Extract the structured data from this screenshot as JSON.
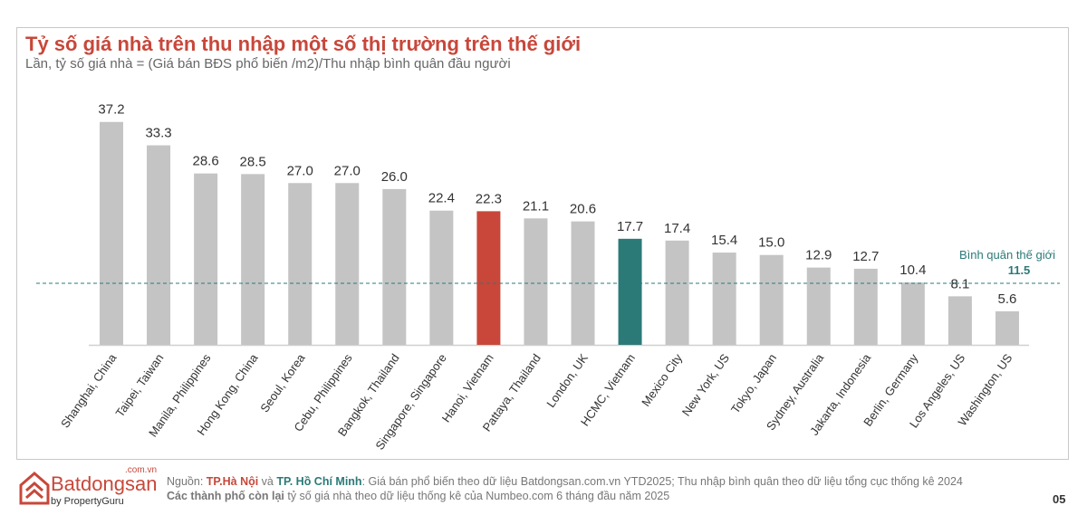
{
  "chart_data": {
    "type": "bar",
    "title": "Tỷ số giá nhà trên thu nhập một số thị trường trên thế giới",
    "subtitle": "Lần, tỷ số giá nhà = (Giá bán BĐS phổ biến /m2)/Thu nhập bình quân đầu người",
    "categories": [
      "Shanghai, China",
      "Taipei, Taiwan",
      "Manila, Philippines",
      "Hong Kong, China",
      "Seoul, Korea",
      "Cebu, Philippines",
      "Bangkok, Thailand",
      "Singapore, Singapore",
      "Hanoi, Vietnam",
      "Pattaya, Thailand",
      "London, UK",
      "HCMC, Vietnam",
      "Mexico City",
      "New York, US",
      "Tokyo, Japan",
      "Sydney, Australia",
      "Jakarta, Indonesia",
      "Berlin, Germany",
      "Los Angeles, US",
      "Washington, US"
    ],
    "values": [
      37.2,
      33.3,
      28.6,
      28.5,
      27.0,
      27.0,
      26.0,
      22.4,
      22.3,
      21.1,
      20.6,
      17.7,
      17.4,
      15.4,
      15.0,
      12.9,
      12.7,
      10.4,
      8.1,
      5.6
    ],
    "labels": [
      "37.2",
      "33.3",
      "28.6",
      "28.5",
      "27.0",
      "27.0",
      "26.0",
      "22.4",
      "22.3",
      "21.1",
      "20.6",
      "17.7",
      "17.4",
      "15.4",
      "15.0",
      "12.9",
      "12.7",
      "10.4",
      "8.1",
      "5.6"
    ],
    "highlight": {
      "Hanoi, Vietnam": "#c8473a",
      "HCMC, Vietnam": "#2b7a78"
    },
    "bar_color": "#c4c4c4",
    "reference_line": {
      "label": "Bình quân thế giới",
      "value": 11.5,
      "value_label": "11.5",
      "color": "#2b7a78",
      "style": "dashed"
    },
    "ylim": [
      0,
      38
    ],
    "grid": false
  },
  "footer": {
    "source_prefix": "Nguồn: ",
    "hanoi": "TP.Hà Nội",
    "and": " và ",
    "hcmc": "TP. Hồ Chí Minh",
    "line1_rest": ": Giá bán phổ biến theo dữ liệu Batdongsan.com.vn YTD2025; Thu nhập bình quân theo dữ liệu tổng cục thống kê 2024",
    "line2_bold": "Các thành phố còn lại",
    "line2_rest": " tỷ số giá nhà theo dữ liệu thống kê của Numbeo.com 6 tháng đầu năm 2025",
    "page": "05"
  },
  "logo": {
    "name": "Batdongsan",
    "domain": ".com.vn",
    "sub": "by PropertyGuru"
  }
}
